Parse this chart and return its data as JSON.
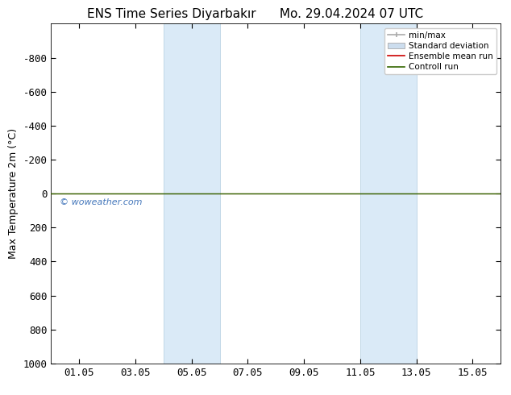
{
  "title": "ENS Time Series Diyarbakır      Mo. 29.04.2024 07 UTC",
  "ylabel": "Max Temperature 2m (°C)",
  "background_color": "#ffffff",
  "plot_bg_color": "#ffffff",
  "ylim_bottom": 1000,
  "ylim_top": -1000,
  "yticks": [
    -800,
    -600,
    -400,
    -200,
    0,
    200,
    400,
    600,
    800,
    1000
  ],
  "xmin": 0.0,
  "xmax": 16.0,
  "xtick_positions": [
    1,
    3,
    5,
    7,
    9,
    11,
    13,
    15
  ],
  "xtick_labels": [
    "01.05",
    "03.05",
    "05.05",
    "07.05",
    "09.05",
    "11.05",
    "13.05",
    "15.05"
  ],
  "shaded_regions": [
    {
      "xmin": 4.0,
      "xmax": 6.0
    },
    {
      "xmin": 11.0,
      "xmax": 13.0
    }
  ],
  "shaded_color": "#daeaf7",
  "shaded_edge_color": "#b0cce0",
  "green_line_y": 0,
  "green_line_color": "#336600",
  "red_line_y": 0,
  "red_line_color": "#cc0000",
  "watermark": "© woweather.com",
  "watermark_color": "#4477bb",
  "legend_entries": [
    "min/max",
    "Standard deviation",
    "Ensemble mean run",
    "Controll run"
  ],
  "legend_colors_line": [
    "#aaaaaa",
    "#cccccc",
    "#cc0000",
    "#336600"
  ],
  "font_size": 9,
  "title_font_size": 11
}
